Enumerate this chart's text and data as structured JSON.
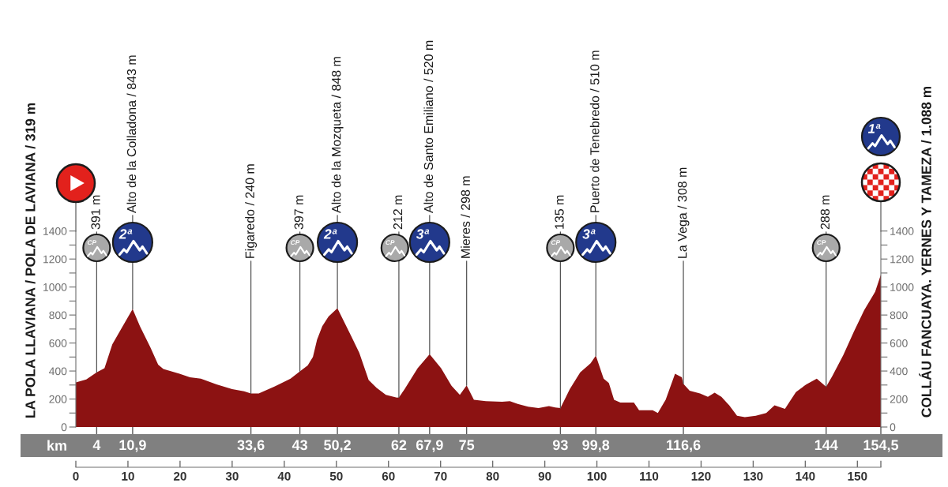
{
  "chart_data": {
    "type": "area",
    "x": [
      0,
      2,
      4,
      5.5,
      7,
      9,
      10.9,
      12.3,
      14.3,
      15.8,
      16.8,
      19.9,
      21.9,
      24,
      27,
      30,
      32.3,
      33.6,
      35.1,
      38.2,
      41.2,
      43,
      44.5,
      45.5,
      46.3,
      47.3,
      48.5,
      50.2,
      52.9,
      54.4,
      56.2,
      57.7,
      59.5,
      61.6,
      62,
      63.1,
      65.6,
      67.9,
      70.1,
      72.1,
      73.7,
      75,
      76.4,
      78.7,
      81.8,
      83.3,
      84.8,
      86.8,
      88.8,
      90.8,
      92,
      93,
      94.8,
      96.8,
      98.8,
      99.8,
      101.3,
      102.3,
      103.3,
      104.5,
      107.1,
      108.1,
      110.7,
      111.7,
      113.2,
      115,
      116.3,
      116.6,
      117.8,
      119.8,
      121.3,
      122.6,
      123.9,
      125.4,
      126.9,
      128.4,
      130.5,
      132.5,
      134.1,
      136.1,
      138.2,
      140.2,
      142.2,
      144,
      145.2,
      147.3,
      149.3,
      151.3,
      153.4,
      154.5
    ],
    "series": [
      {
        "color": "#8c1212",
        "values": [
          319,
          340,
          391,
          420,
          590,
          720,
          843,
          720,
          570,
          445,
          415,
          380,
          355,
          345,
          305,
          270,
          255,
          240,
          240,
          290,
          345,
          397,
          440,
          500,
          625,
          720,
          790,
          848,
          645,
          530,
          335,
          280,
          230,
          210,
          212,
          270,
          420,
          520,
          420,
          295,
          230,
          298,
          195,
          185,
          180,
          185,
          165,
          145,
          135,
          150,
          140,
          135,
          270,
          390,
          455,
          510,
          345,
          315,
          195,
          175,
          175,
          120,
          120,
          100,
          195,
          380,
          355,
          308,
          260,
          240,
          215,
          245,
          215,
          155,
          80,
          70,
          80,
          100,
          155,
          130,
          250,
          305,
          345,
          288,
          365,
          515,
          680,
          835,
          965,
          1088
        ]
      }
    ],
    "xlim": [
      0,
      154.5
    ],
    "xticks": [
      0,
      10,
      20,
      30,
      40,
      50,
      60,
      70,
      80,
      90,
      100,
      110,
      120,
      130,
      140,
      150,
      {
        "value": 154.5,
        "label": null
      }
    ],
    "ylim": [
      0,
      1400
    ],
    "yticks": [
      0,
      {
        "value": 100,
        "label": null
      },
      200,
      {
        "value": 300,
        "label": null
      },
      400,
      {
        "value": 500,
        "label": null
      },
      600,
      {
        "value": 700,
        "label": null
      },
      800,
      {
        "value": 900,
        "label": null
      },
      1000,
      {
        "value": 1100,
        "label": null
      },
      1200,
      {
        "value": 1300,
        "label": null
      },
      1400
    ],
    "y2lim": [
      0,
      1400
    ],
    "y2ticks": [
      0,
      {
        "value": 100,
        "label": null
      },
      200,
      {
        "value": 300,
        "label": null
      },
      400,
      {
        "value": 500,
        "label": null
      },
      600,
      {
        "value": 700,
        "label": null
      },
      800,
      {
        "value": 900,
        "label": null
      },
      1000,
      {
        "value": 1100,
        "label": null
      },
      1200,
      {
        "value": 1300,
        "label": null
      },
      1400
    ],
    "x2lim": [
      0,
      154.5
    ],
    "x2ticks": [
      4,
      {
        "value": 10.9,
        "label": "10,9"
      },
      {
        "value": 33.6,
        "label": "33,6"
      },
      43,
      {
        "value": 50.2,
        "label": "50,2"
      },
      62,
      {
        "value": 67.9,
        "label": "67,9"
      },
      75,
      93,
      {
        "value": 99.8,
        "label": "99,8"
      },
      {
        "value": 116.6,
        "label": "116,6"
      },
      144,
      {
        "value": 154.5,
        "label": "154,5"
      }
    ],
    "x2label": "km",
    "ylabel": "LA POLA LLAVIANA / POLA DE LAVIANA / 319 m",
    "y2label": "COLLÁU FANCUAYA. YERNES Y TAMEZA / 1.088 m",
    "annotations": [
      {
        "text": "391 m",
        "x": 4,
        "y": 391
      },
      "CP",
      {
        "text": "Alto de la Colladona / 843 m",
        "x": 10.9,
        "y": 843
      },
      "2ª",
      {
        "text": "Figaredo / 240 m",
        "x": 33.6,
        "y": 240
      },
      {
        "text": "397 m",
        "x": 43,
        "y": 397
      },
      "CP",
      {
        "text": "Alto de la Mozqueta / 848 m",
        "x": 50.2,
        "y": 848
      },
      "2ª",
      {
        "text": "212 m",
        "x": 62,
        "y": 212
      },
      "CP",
      {
        "text": "Alto de Santo Emiliano / 520 m",
        "x": 67.9,
        "y": 520
      },
      "3ª",
      {
        "text": "Mieres / 298 m",
        "x": 75,
        "y": 298
      },
      {
        "text": "135 m",
        "x": 93,
        "y": 135
      },
      "CP",
      {
        "text": "Puerto de Tenebredo / 510 m",
        "x": 99.8,
        "y": 510
      },
      "3ª",
      {
        "text": "La Vega / 308 m",
        "x": 116.6,
        "y": 308
      },
      {
        "text": "288 m",
        "x": 144,
        "y": 288
      },
      "CP",
      "1ª"
    ]
  }
}
